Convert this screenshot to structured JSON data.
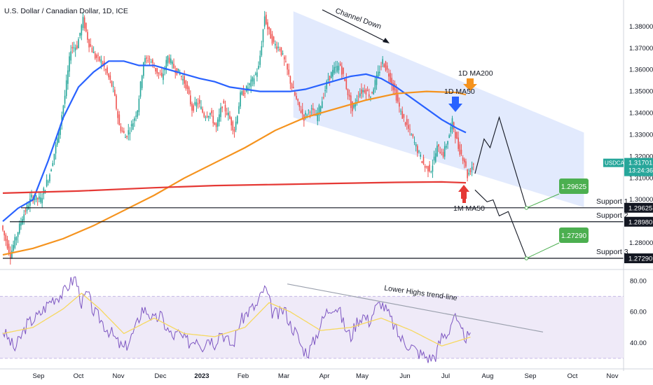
{
  "header": {
    "title": "U.S. Dollar / Canadian Dollar, 1D, ICE"
  },
  "chart_data": [
    {
      "type": "candlestick",
      "title": "U.S. Dollar / Canadian Dollar, 1D, ICE",
      "ylim": [
        1.27,
        1.389
      ],
      "y_ticks": [
        "1.38000",
        "1.37000",
        "1.36000",
        "1.35000",
        "1.34000",
        "1.33000",
        "1.32000",
        "1.31000",
        "1.30000",
        "1.28000"
      ],
      "x_ticks": [
        "Sep",
        "Oct",
        "Nov",
        "Dec",
        "2023",
        "Feb",
        "Mar",
        "Apr",
        "May",
        "Jun",
        "Jul",
        "Aug",
        "Sep",
        "Oct",
        "Nov"
      ],
      "price_label": {
        "symbol": "USDCAD",
        "value": "1.31701",
        "countdown": "13:24:36"
      },
      "price_path": [
        [
          0,
          1.288
        ],
        [
          6,
          1.2745
        ],
        [
          14,
          1.292
        ],
        [
          20,
          1.301
        ],
        [
          26,
          1.3
        ],
        [
          32,
          1.312
        ],
        [
          38,
          1.331
        ],
        [
          42,
          1.348
        ],
        [
          46,
          1.37
        ],
        [
          50,
          1.371
        ],
        [
          54,
          1.383
        ],
        [
          58,
          1.372
        ],
        [
          62,
          1.366
        ],
        [
          66,
          1.364
        ],
        [
          70,
          1.358
        ],
        [
          74,
          1.351
        ],
        [
          78,
          1.334
        ],
        [
          82,
          1.329
        ],
        [
          86,
          1.334
        ],
        [
          90,
          1.342
        ],
        [
          94,
          1.364
        ],
        [
          98,
          1.365
        ],
        [
          102,
          1.36
        ],
        [
          106,
          1.356
        ],
        [
          110,
          1.366
        ],
        [
          114,
          1.361
        ],
        [
          118,
          1.358
        ],
        [
          122,
          1.353
        ],
        [
          126,
          1.342
        ],
        [
          130,
          1.345
        ],
        [
          134,
          1.339
        ],
        [
          138,
          1.34
        ],
        [
          142,
          1.333
        ],
        [
          146,
          1.344
        ],
        [
          150,
          1.339
        ],
        [
          154,
          1.332
        ],
        [
          158,
          1.348
        ],
        [
          162,
          1.351
        ],
        [
          166,
          1.355
        ],
        [
          170,
          1.361
        ],
        [
          172,
          1.372
        ],
        [
          174,
          1.385
        ],
        [
          176,
          1.379
        ],
        [
          180,
          1.372
        ],
        [
          184,
          1.37
        ],
        [
          188,
          1.362
        ],
        [
          192,
          1.352
        ],
        [
          196,
          1.344
        ],
        [
          200,
          1.338
        ],
        [
          204,
          1.342
        ],
        [
          208,
          1.338
        ],
        [
          212,
          1.346
        ],
        [
          216,
          1.356
        ],
        [
          220,
          1.36
        ],
        [
          224,
          1.362
        ],
        [
          228,
          1.352
        ],
        [
          232,
          1.341
        ],
        [
          236,
          1.349
        ],
        [
          240,
          1.351
        ],
        [
          244,
          1.348
        ],
        [
          248,
          1.356
        ],
        [
          252,
          1.364
        ],
        [
          256,
          1.358
        ],
        [
          260,
          1.35
        ],
        [
          264,
          1.34
        ],
        [
          268,
          1.334
        ],
        [
          272,
          1.328
        ],
        [
          276,
          1.321
        ],
        [
          280,
          1.315
        ],
        [
          284,
          1.314
        ],
        [
          288,
          1.324
        ],
        [
          292,
          1.321
        ],
        [
          296,
          1.33
        ],
        [
          298,
          1.336
        ],
        [
          302,
          1.324
        ],
        [
          306,
          1.318
        ],
        [
          308,
          1.311
        ],
        [
          312,
          1.317
        ]
      ],
      "projection_path": [
        [
          312,
          1.312
        ],
        [
          318,
          1.328
        ],
        [
          322,
          1.324
        ],
        [
          328,
          1.338
        ],
        [
          346,
          1.2962
        ]
      ],
      "series": [
        {
          "name": "1D MA50",
          "color": "#2962ff",
          "values": [
            [
              0,
              1.29
            ],
            [
              10,
              1.296
            ],
            [
              20,
              1.3
            ],
            [
              30,
              1.318
            ],
            [
              40,
              1.338
            ],
            [
              50,
              1.352
            ],
            [
              60,
              1.359
            ],
            [
              70,
              1.364
            ],
            [
              80,
              1.364
            ],
            [
              90,
              1.362
            ],
            [
              100,
              1.362
            ],
            [
              110,
              1.36
            ],
            [
              120,
              1.358
            ],
            [
              130,
              1.356
            ],
            [
              140,
              1.3545
            ],
            [
              150,
              1.352
            ],
            [
              160,
              1.351
            ],
            [
              170,
              1.35
            ],
            [
              180,
              1.35
            ],
            [
              190,
              1.35
            ],
            [
              200,
              1.351
            ],
            [
              210,
              1.353
            ],
            [
              220,
              1.355
            ],
            [
              230,
              1.357
            ],
            [
              240,
              1.358
            ],
            [
              250,
              1.356
            ],
            [
              260,
              1.352
            ],
            [
              270,
              1.347
            ],
            [
              280,
              1.342
            ],
            [
              290,
              1.337
            ],
            [
              300,
              1.333
            ],
            [
              306,
              1.331
            ]
          ]
        },
        {
          "name": "1D MA200",
          "color": "#f5931e",
          "values": [
            [
              0,
              1.2745
            ],
            [
              20,
              1.2775
            ],
            [
              40,
              1.282
            ],
            [
              60,
              1.288
            ],
            [
              80,
              1.295
            ],
            [
              100,
              1.302
            ],
            [
              120,
              1.31
            ],
            [
              140,
              1.317
            ],
            [
              160,
              1.324
            ],
            [
              180,
              1.332
            ],
            [
              200,
              1.338
            ],
            [
              220,
              1.342
            ],
            [
              240,
              1.346
            ],
            [
              260,
              1.349
            ],
            [
              280,
              1.35
            ],
            [
              300,
              1.3495
            ],
            [
              306,
              1.3485
            ]
          ]
        },
        {
          "name": "1M MA50",
          "color": "#e53935",
          "values": [
            [
              0,
              1.303
            ],
            [
              50,
              1.304
            ],
            [
              100,
              1.3055
            ],
            [
              140,
              1.3065
            ],
            [
              180,
              1.307
            ],
            [
              220,
              1.3075
            ],
            [
              260,
              1.308
            ],
            [
              290,
              1.3082
            ],
            [
              306,
              1.3078
            ]
          ]
        }
      ],
      "horizontal_levels": [
        {
          "name": "Support 1",
          "value": "1.29625"
        },
        {
          "name": "Support 2",
          "value": "1.28980"
        },
        {
          "name": "Support 3",
          "value": "1.27290"
        }
      ],
      "target_labels": [
        "1.29625",
        "1.27290"
      ],
      "annotations": [
        "Channel Down",
        "1D MA200",
        "1D MA50",
        "1M MA50",
        "Support 1",
        "Support 2",
        "Support 3"
      ],
      "colors": {
        "up": "#26a69a",
        "down": "#ef5350",
        "channel": "#dde6fd",
        "target": "#4caf50"
      }
    },
    {
      "type": "line",
      "ylim": [
        25,
        86
      ],
      "y_ticks": [
        "80.00",
        "60.00",
        "40.00"
      ],
      "band": [
        30,
        70
      ],
      "annotations": [
        "Lower Highs trend-line"
      ],
      "series": [
        {
          "name": "",
          "color": "#7e57c2",
          "values": [
            [
              0,
              48
            ],
            [
              8,
              36
            ],
            [
              16,
              52
            ],
            [
              24,
              58
            ],
            [
              32,
              68
            ],
            [
              40,
              72
            ],
            [
              44,
              78
            ],
            [
              48,
              82
            ],
            [
              52,
              66
            ],
            [
              56,
              72
            ],
            [
              60,
              60
            ],
            [
              64,
              56
            ],
            [
              68,
              50
            ],
            [
              72,
              46
            ],
            [
              76,
              40
            ],
            [
              80,
              36
            ],
            [
              84,
              42
            ],
            [
              88,
              50
            ],
            [
              92,
              62
            ],
            [
              96,
              60
            ],
            [
              100,
              54
            ],
            [
              104,
              58
            ],
            [
              108,
              50
            ],
            [
              112,
              44
            ],
            [
              116,
              46
            ],
            [
              120,
              42
            ],
            [
              124,
              40
            ],
            [
              128,
              44
            ],
            [
              132,
              38
            ],
            [
              136,
              44
            ],
            [
              140,
              40
            ],
            [
              144,
              48
            ],
            [
              148,
              42
            ],
            [
              152,
              38
            ],
            [
              156,
              52
            ],
            [
              160,
              58
            ],
            [
              164,
              62
            ],
            [
              168,
              64
            ],
            [
              172,
              74
            ],
            [
              174,
              74
            ],
            [
              178,
              60
            ],
            [
              182,
              58
            ],
            [
              186,
              62
            ],
            [
              190,
              52
            ],
            [
              194,
              46
            ],
            [
              198,
              36
            ],
            [
              202,
              34
            ],
            [
              206,
              42
            ],
            [
              210,
              52
            ],
            [
              214,
              60
            ],
            [
              218,
              64
            ],
            [
              222,
              62
            ],
            [
              226,
              50
            ],
            [
              230,
              44
            ],
            [
              234,
              54
            ],
            [
              238,
              58
            ],
            [
              242,
              54
            ],
            [
              246,
              62
            ],
            [
              250,
              66
            ],
            [
              254,
              60
            ],
            [
              258,
              52
            ],
            [
              262,
              44
            ],
            [
              266,
              40
            ],
            [
              270,
              38
            ],
            [
              274,
              34
            ],
            [
              278,
              32
            ],
            [
              282,
              30
            ],
            [
              286,
              32
            ],
            [
              290,
              44
            ],
            [
              294,
              46
            ],
            [
              298,
              58
            ],
            [
              302,
              48
            ],
            [
              306,
              44
            ],
            [
              310,
              42
            ]
          ]
        },
        {
          "name": "",
          "color": "#f6d860",
          "values": [
            [
              0,
              46
            ],
            [
              20,
              50
            ],
            [
              40,
              62
            ],
            [
              52,
              72
            ],
            [
              64,
              62
            ],
            [
              80,
              46
            ],
            [
              100,
              56
            ],
            [
              120,
              46
            ],
            [
              140,
              44
            ],
            [
              160,
              50
            ],
            [
              176,
              66
            ],
            [
              190,
              60
            ],
            [
              210,
              48
            ],
            [
              230,
              50
            ],
            [
              250,
              56
            ],
            [
              270,
              48
            ],
            [
              290,
              38
            ],
            [
              310,
              44
            ]
          ]
        }
      ]
    }
  ]
}
